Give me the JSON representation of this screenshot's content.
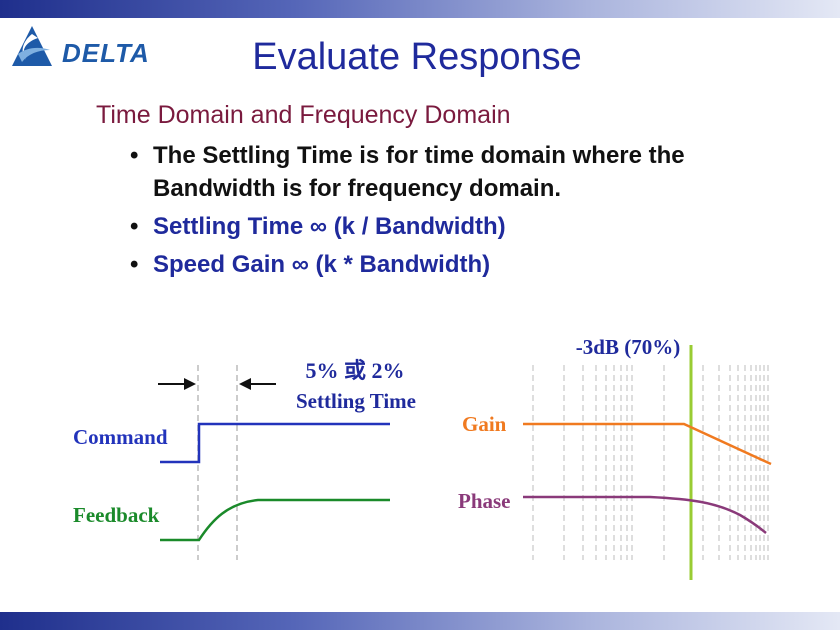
{
  "logo": {
    "text": "DELTA"
  },
  "slide": {
    "title": "Evaluate Response",
    "subtitle": "Time Domain and Frequency Domain",
    "bullets": [
      "The Settling Time is for time domain where the Bandwidth is for frequency domain.",
      "Settling Time ∞ (k / Bandwidth)",
      "Speed Gain ∞  (k * Bandwidth)"
    ],
    "bullet_glyph": "•"
  },
  "time_diagram": {
    "settling_label_1": "5% 或 2%",
    "settling_label_2": "Settling Time",
    "command_label": "Command",
    "feedback_label": "Feedback"
  },
  "freq_diagram": {
    "marker_label": "-3dB (70%)",
    "gain_label": "Gain",
    "phase_label": "Phase"
  },
  "colors": {
    "title": "#1f2a9c",
    "subtitle": "#7a1a3e",
    "command": "#2233bb",
    "feedback": "#1a8a2a",
    "gain": "#f07a20",
    "phase": "#8a3a7a",
    "marker": "#99cc33"
  }
}
